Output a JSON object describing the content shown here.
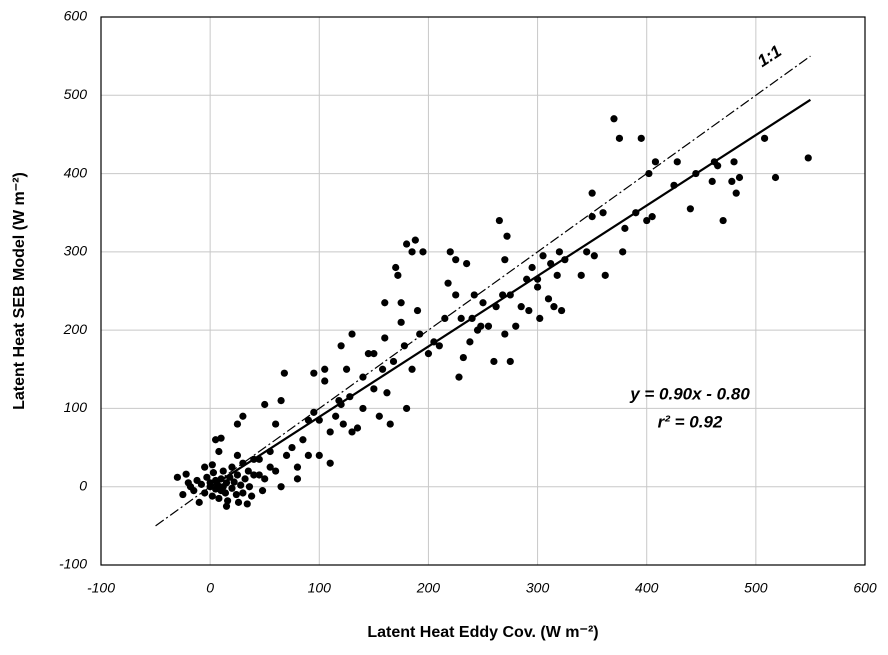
{
  "chart_data": {
    "type": "scatter",
    "x_label": "Latent Heat Eddy Cov. (W m⁻²)",
    "y_label": "Latent Heat SEB Model (W m⁻²)",
    "one_to_one_label": "1:1",
    "equation": "y = 0.90x - 0.80",
    "r_squared": "r² = 0.92",
    "xlim": [
      -100,
      600
    ],
    "ylim": [
      -100,
      600
    ],
    "xticks": [
      -100,
      0,
      100,
      200,
      300,
      400,
      500,
      600
    ],
    "yticks": [
      -100,
      0,
      100,
      200,
      300,
      400,
      500,
      600
    ],
    "grid": true,
    "series": [
      {
        "color": "#000000",
        "x": [
          -30,
          -25,
          -22,
          -20,
          -18,
          -15,
          -12,
          -10,
          -8,
          -5,
          -3,
          0,
          0,
          2,
          3,
          5,
          5,
          7,
          8,
          10,
          10,
          12,
          12,
          14,
          15,
          16,
          18,
          20,
          20,
          22,
          24,
          25,
          26,
          28,
          30,
          30,
          32,
          34,
          35,
          36,
          38,
          40,
          40,
          5,
          10,
          15,
          25,
          2,
          -5,
          8,
          30,
          25,
          45,
          45,
          50,
          48,
          55,
          55,
          50,
          60,
          65,
          68,
          60,
          65,
          70,
          75,
          80,
          80,
          85,
          90,
          90,
          95,
          95,
          100,
          100,
          105,
          105,
          110,
          110,
          115,
          118,
          120,
          120,
          122,
          125,
          128,
          130,
          130,
          135,
          140,
          140,
          145,
          150,
          150,
          155,
          158,
          160,
          160,
          162,
          165,
          168,
          170,
          172,
          175,
          175,
          178,
          180,
          180,
          185,
          185,
          188,
          190,
          192,
          195,
          200,
          205,
          210,
          215,
          218,
          220,
          225,
          225,
          228,
          230,
          232,
          235,
          238,
          240,
          242,
          245,
          248,
          250,
          255,
          260,
          262,
          265,
          268,
          270,
          270,
          272,
          275,
          275,
          280,
          285,
          290,
          292,
          295,
          300,
          300,
          302,
          305,
          310,
          312,
          315,
          318,
          320,
          322,
          325,
          340,
          345,
          350,
          350,
          352,
          360,
          362,
          370,
          375,
          378,
          380,
          390,
          395,
          400,
          402,
          405,
          408,
          425,
          428,
          440,
          445,
          460,
          462,
          465,
          470,
          478,
          480,
          482,
          485,
          508,
          518,
          548
        ],
        "values": [
          12,
          -10,
          16,
          5,
          0,
          -5,
          8,
          -20,
          3,
          -8,
          12,
          0,
          5,
          -12,
          18,
          -3,
          8,
          2,
          -15,
          10,
          -5,
          20,
          0,
          -8,
          5,
          -18,
          12,
          -2,
          25,
          6,
          -10,
          15,
          -20,
          2,
          30,
          -8,
          10,
          -22,
          20,
          0,
          -12,
          15,
          35,
          60,
          62,
          -25,
          40,
          28,
          25,
          45,
          90,
          80,
          35,
          15,
          10,
          -5,
          25,
          45,
          105,
          80,
          110,
          145,
          20,
          0,
          40,
          50,
          25,
          10,
          60,
          85,
          40,
          145,
          95,
          85,
          40,
          150,
          135,
          30,
          70,
          90,
          110,
          180,
          105,
          80,
          150,
          115,
          70,
          195,
          75,
          140,
          100,
          170,
          125,
          170,
          90,
          150,
          235,
          190,
          120,
          80,
          160,
          280,
          270,
          235,
          210,
          180,
          310,
          100,
          150,
          300,
          315,
          225,
          195,
          300,
          170,
          185,
          180,
          215,
          260,
          300,
          290,
          245,
          140,
          215,
          165,
          285,
          185,
          215,
          245,
          200,
          205,
          235,
          205,
          160,
          230,
          340,
          245,
          195,
          290,
          320,
          160,
          245,
          205,
          230,
          265,
          225,
          280,
          255,
          265,
          215,
          295,
          240,
          285,
          230,
          270,
          300,
          225,
          290,
          270,
          300,
          375,
          345,
          295,
          350,
          270,
          470,
          445,
          300,
          330,
          350,
          445,
          340,
          400,
          345,
          415,
          385,
          415,
          355,
          400,
          390,
          415,
          410,
          340,
          390,
          415,
          375,
          395,
          445,
          395,
          420
        ]
      }
    ],
    "lines": [
      {
        "style": "solid",
        "color": "#000000",
        "x": [
          0,
          550
        ],
        "y": [
          -0.8,
          494.2
        ]
      },
      {
        "style": "dashdot",
        "color": "#000000",
        "x": [
          -50,
          550
        ],
        "y": [
          -50,
          550
        ]
      }
    ]
  }
}
